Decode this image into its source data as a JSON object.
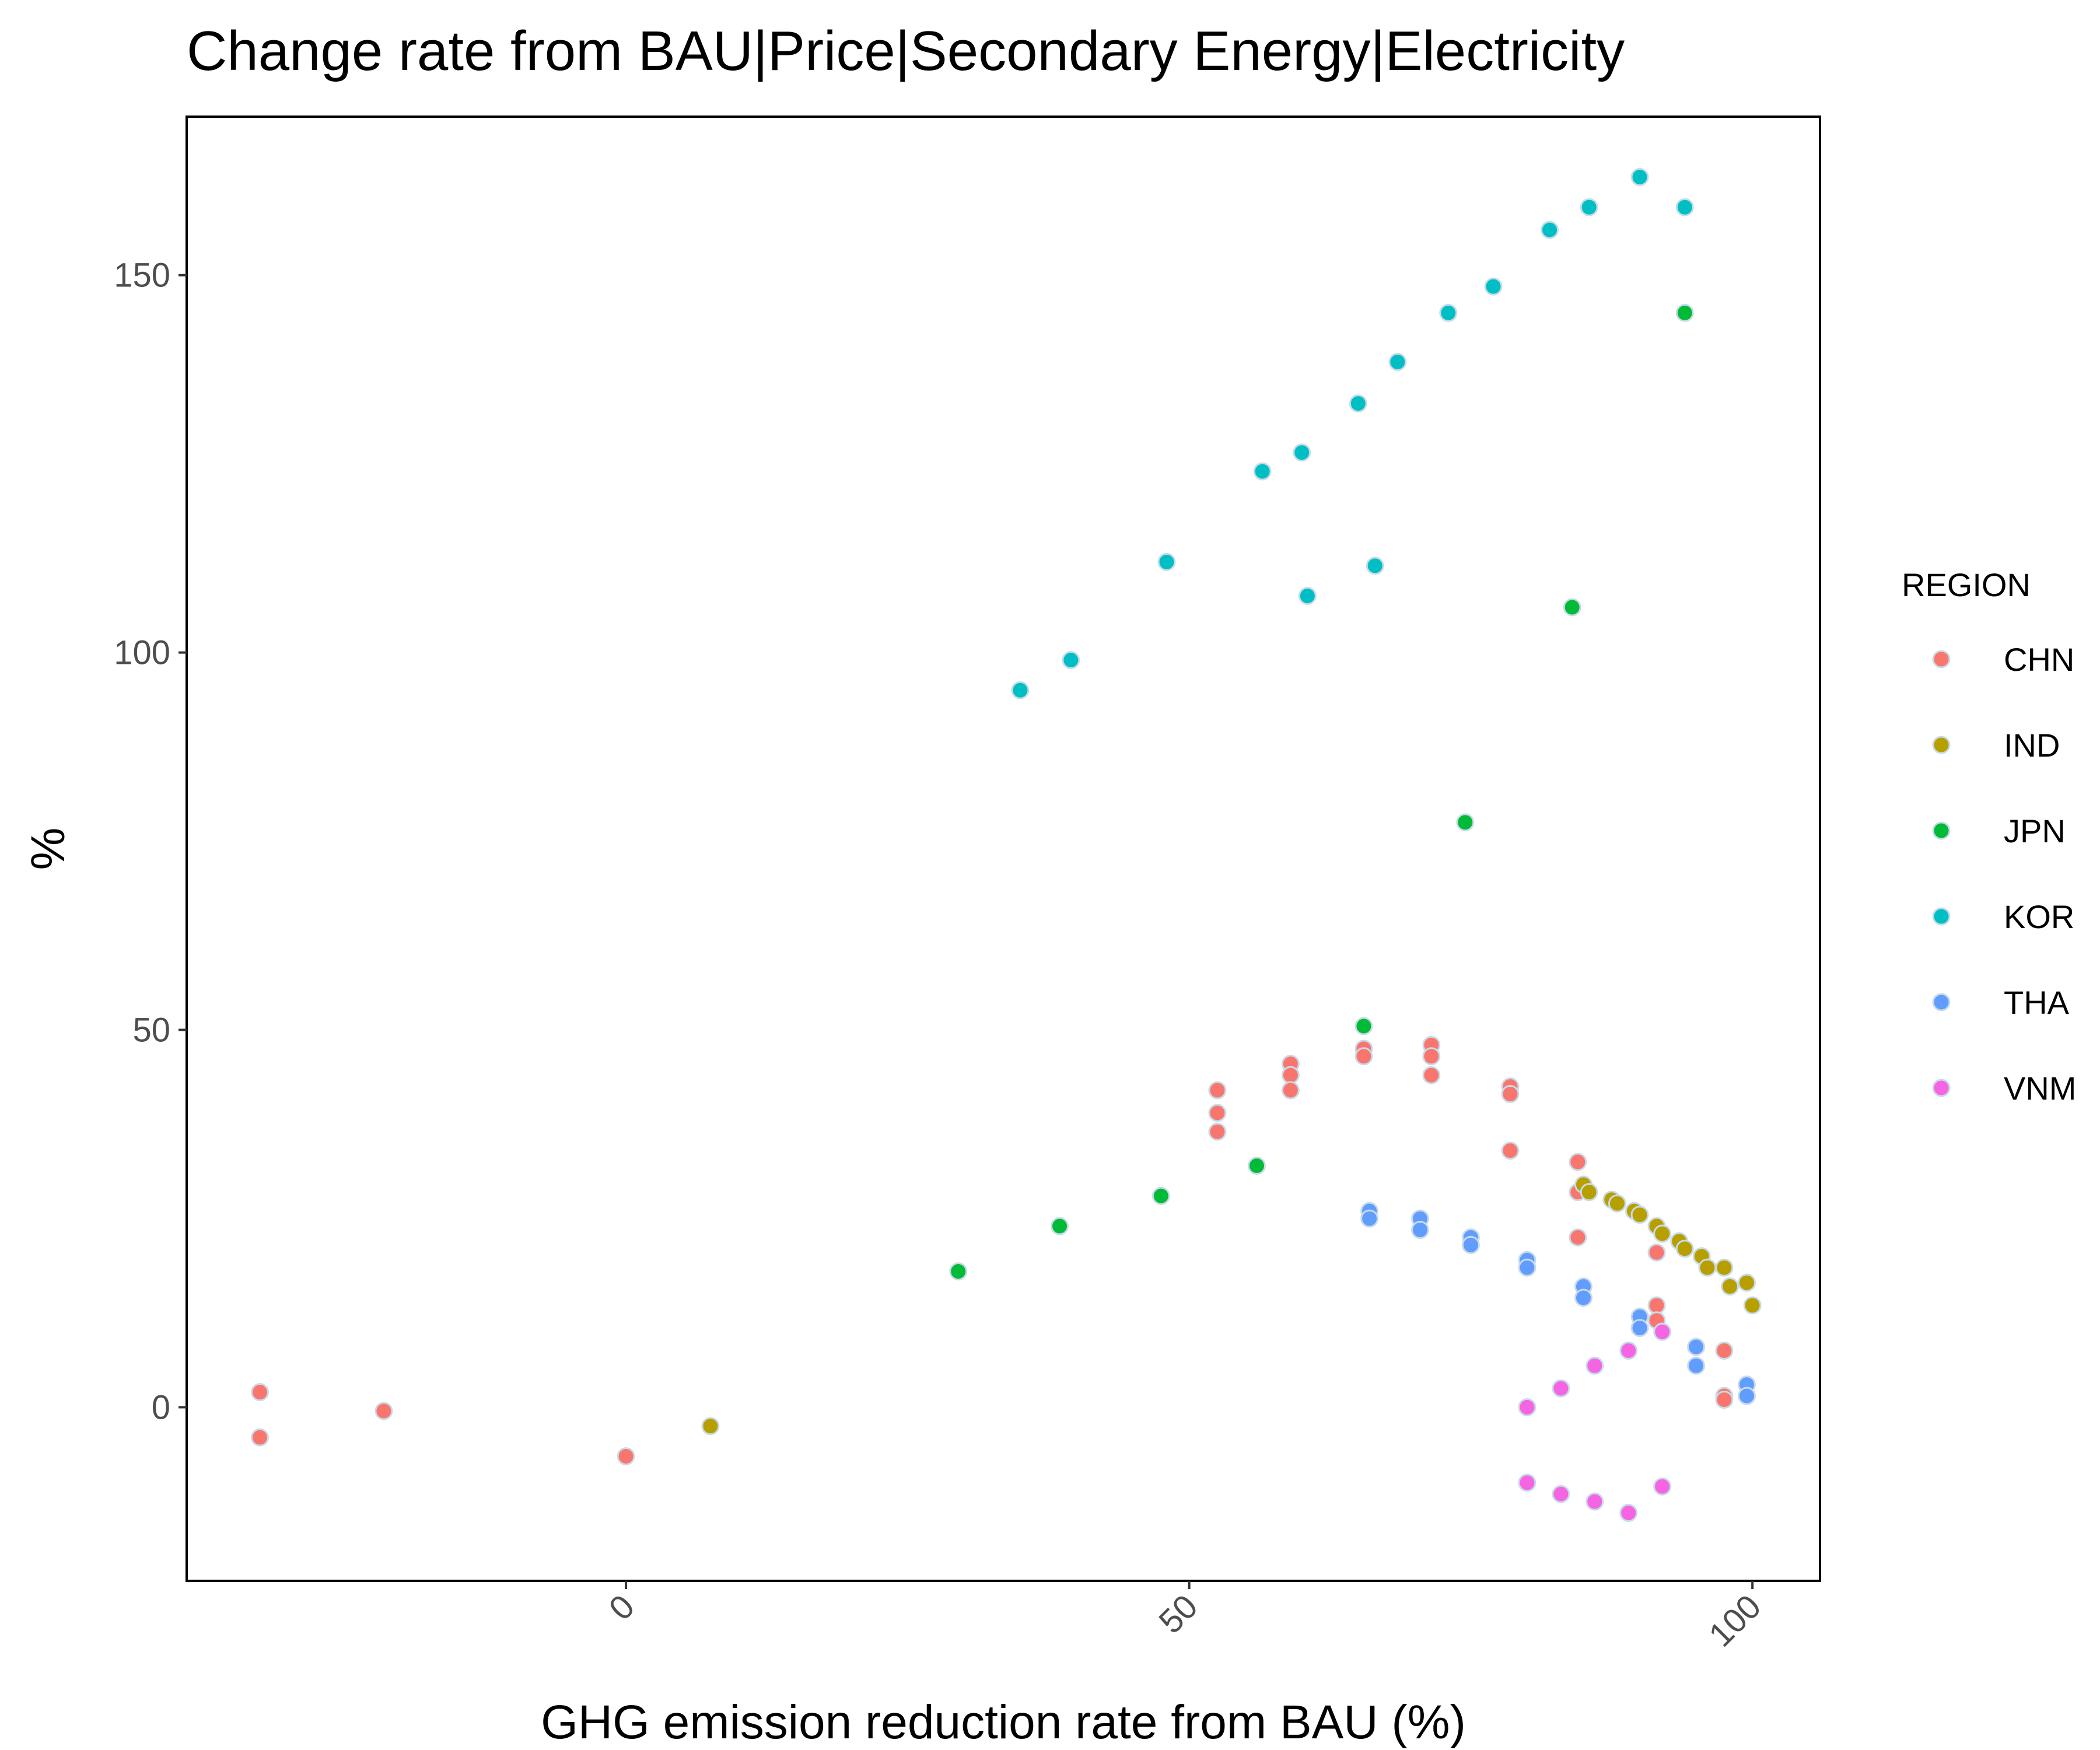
{
  "chart_data": {
    "type": "scatter",
    "title": "Change rate from BAU|Price|Secondary Energy|Electricity",
    "xlabel": "GHG emission reduction rate from BAU (%)",
    "ylabel": "%",
    "xlim": [
      -39,
      106
    ],
    "ylim": [
      -23,
      171
    ],
    "x_ticks": [
      0,
      50,
      100
    ],
    "y_ticks": [
      0,
      50,
      100,
      150
    ],
    "grid": false,
    "legend_title": "REGION",
    "legend_position": "right",
    "series": [
      {
        "name": "CHN",
        "color": "#F8766D",
        "points": [
          [
            -32.5,
            2
          ],
          [
            -32.5,
            -4
          ],
          [
            -21.5,
            -0.5
          ],
          [
            0,
            -6.5
          ],
          [
            52.5,
            42
          ],
          [
            52.5,
            39
          ],
          [
            52.5,
            36.5
          ],
          [
            59,
            45.5
          ],
          [
            59,
            44
          ],
          [
            59,
            42
          ],
          [
            65.5,
            47.5
          ],
          [
            65.5,
            46.5
          ],
          [
            71.5,
            48
          ],
          [
            71.5,
            46.5
          ],
          [
            71.5,
            44
          ],
          [
            78.5,
            42.5
          ],
          [
            78.5,
            41.5
          ],
          [
            78.5,
            34
          ],
          [
            84.5,
            32.5
          ],
          [
            84.5,
            28.5
          ],
          [
            84.5,
            22.5
          ],
          [
            91.5,
            20.5
          ],
          [
            91.5,
            13.5
          ],
          [
            91.5,
            11.5
          ],
          [
            97.5,
            7.5
          ],
          [
            97.5,
            1.5
          ],
          [
            97.5,
            1
          ]
        ]
      },
      {
        "name": "IND",
        "color": "#B79F00",
        "points": [
          [
            7.5,
            -2.5
          ],
          [
            85,
            29.5
          ],
          [
            85.5,
            28.5
          ],
          [
            87.5,
            27.5
          ],
          [
            88,
            27
          ],
          [
            89.5,
            26
          ],
          [
            90,
            25.5
          ],
          [
            91.5,
            24
          ],
          [
            92,
            23
          ],
          [
            93.5,
            22
          ],
          [
            94,
            21
          ],
          [
            95.5,
            20
          ],
          [
            96,
            18.5
          ],
          [
            97.5,
            18.5
          ],
          [
            98,
            16
          ],
          [
            99.5,
            16.5
          ],
          [
            100,
            13.5
          ]
        ]
      },
      {
        "name": "JPN",
        "color": "#00BA38",
        "points": [
          [
            29.5,
            18
          ],
          [
            38.5,
            24
          ],
          [
            47.5,
            28
          ],
          [
            56,
            32
          ],
          [
            65.5,
            50.5
          ],
          [
            74.5,
            77.5
          ],
          [
            84,
            106
          ],
          [
            94,
            145
          ]
        ]
      },
      {
        "name": "KOR",
        "color": "#00BFC4",
        "points": [
          [
            35,
            95
          ],
          [
            39.5,
            99
          ],
          [
            48,
            112
          ],
          [
            56.5,
            124
          ],
          [
            60,
            126.5
          ],
          [
            60.5,
            107.5
          ],
          [
            65,
            133
          ],
          [
            66.5,
            111.5
          ],
          [
            68.5,
            138.5
          ],
          [
            73,
            145
          ],
          [
            77,
            148.5
          ],
          [
            82,
            156
          ],
          [
            85.5,
            159
          ],
          [
            90,
            163
          ],
          [
            94,
            159
          ]
        ]
      },
      {
        "name": "THA",
        "color": "#619CFF",
        "points": [
          [
            66,
            26
          ],
          [
            66,
            25
          ],
          [
            70.5,
            25
          ],
          [
            70.5,
            23.5
          ],
          [
            75,
            22.5
          ],
          [
            75,
            21.5
          ],
          [
            80,
            19.5
          ],
          [
            80,
            18.5
          ],
          [
            85,
            16
          ],
          [
            85,
            14.5
          ],
          [
            90,
            12
          ],
          [
            90,
            10.5
          ],
          [
            95,
            8
          ],
          [
            95,
            5.5
          ],
          [
            99.5,
            3
          ],
          [
            99.5,
            1.5
          ]
        ]
      },
      {
        "name": "VNM",
        "color": "#F564E3",
        "points": [
          [
            80,
            0
          ],
          [
            83,
            2.5
          ],
          [
            86,
            5.5
          ],
          [
            89,
            7.5
          ],
          [
            92,
            10
          ],
          [
            80,
            -10
          ],
          [
            83,
            -11.5
          ],
          [
            86,
            -12.5
          ],
          [
            89,
            -14
          ],
          [
            92,
            -10.5
          ]
        ]
      }
    ]
  }
}
